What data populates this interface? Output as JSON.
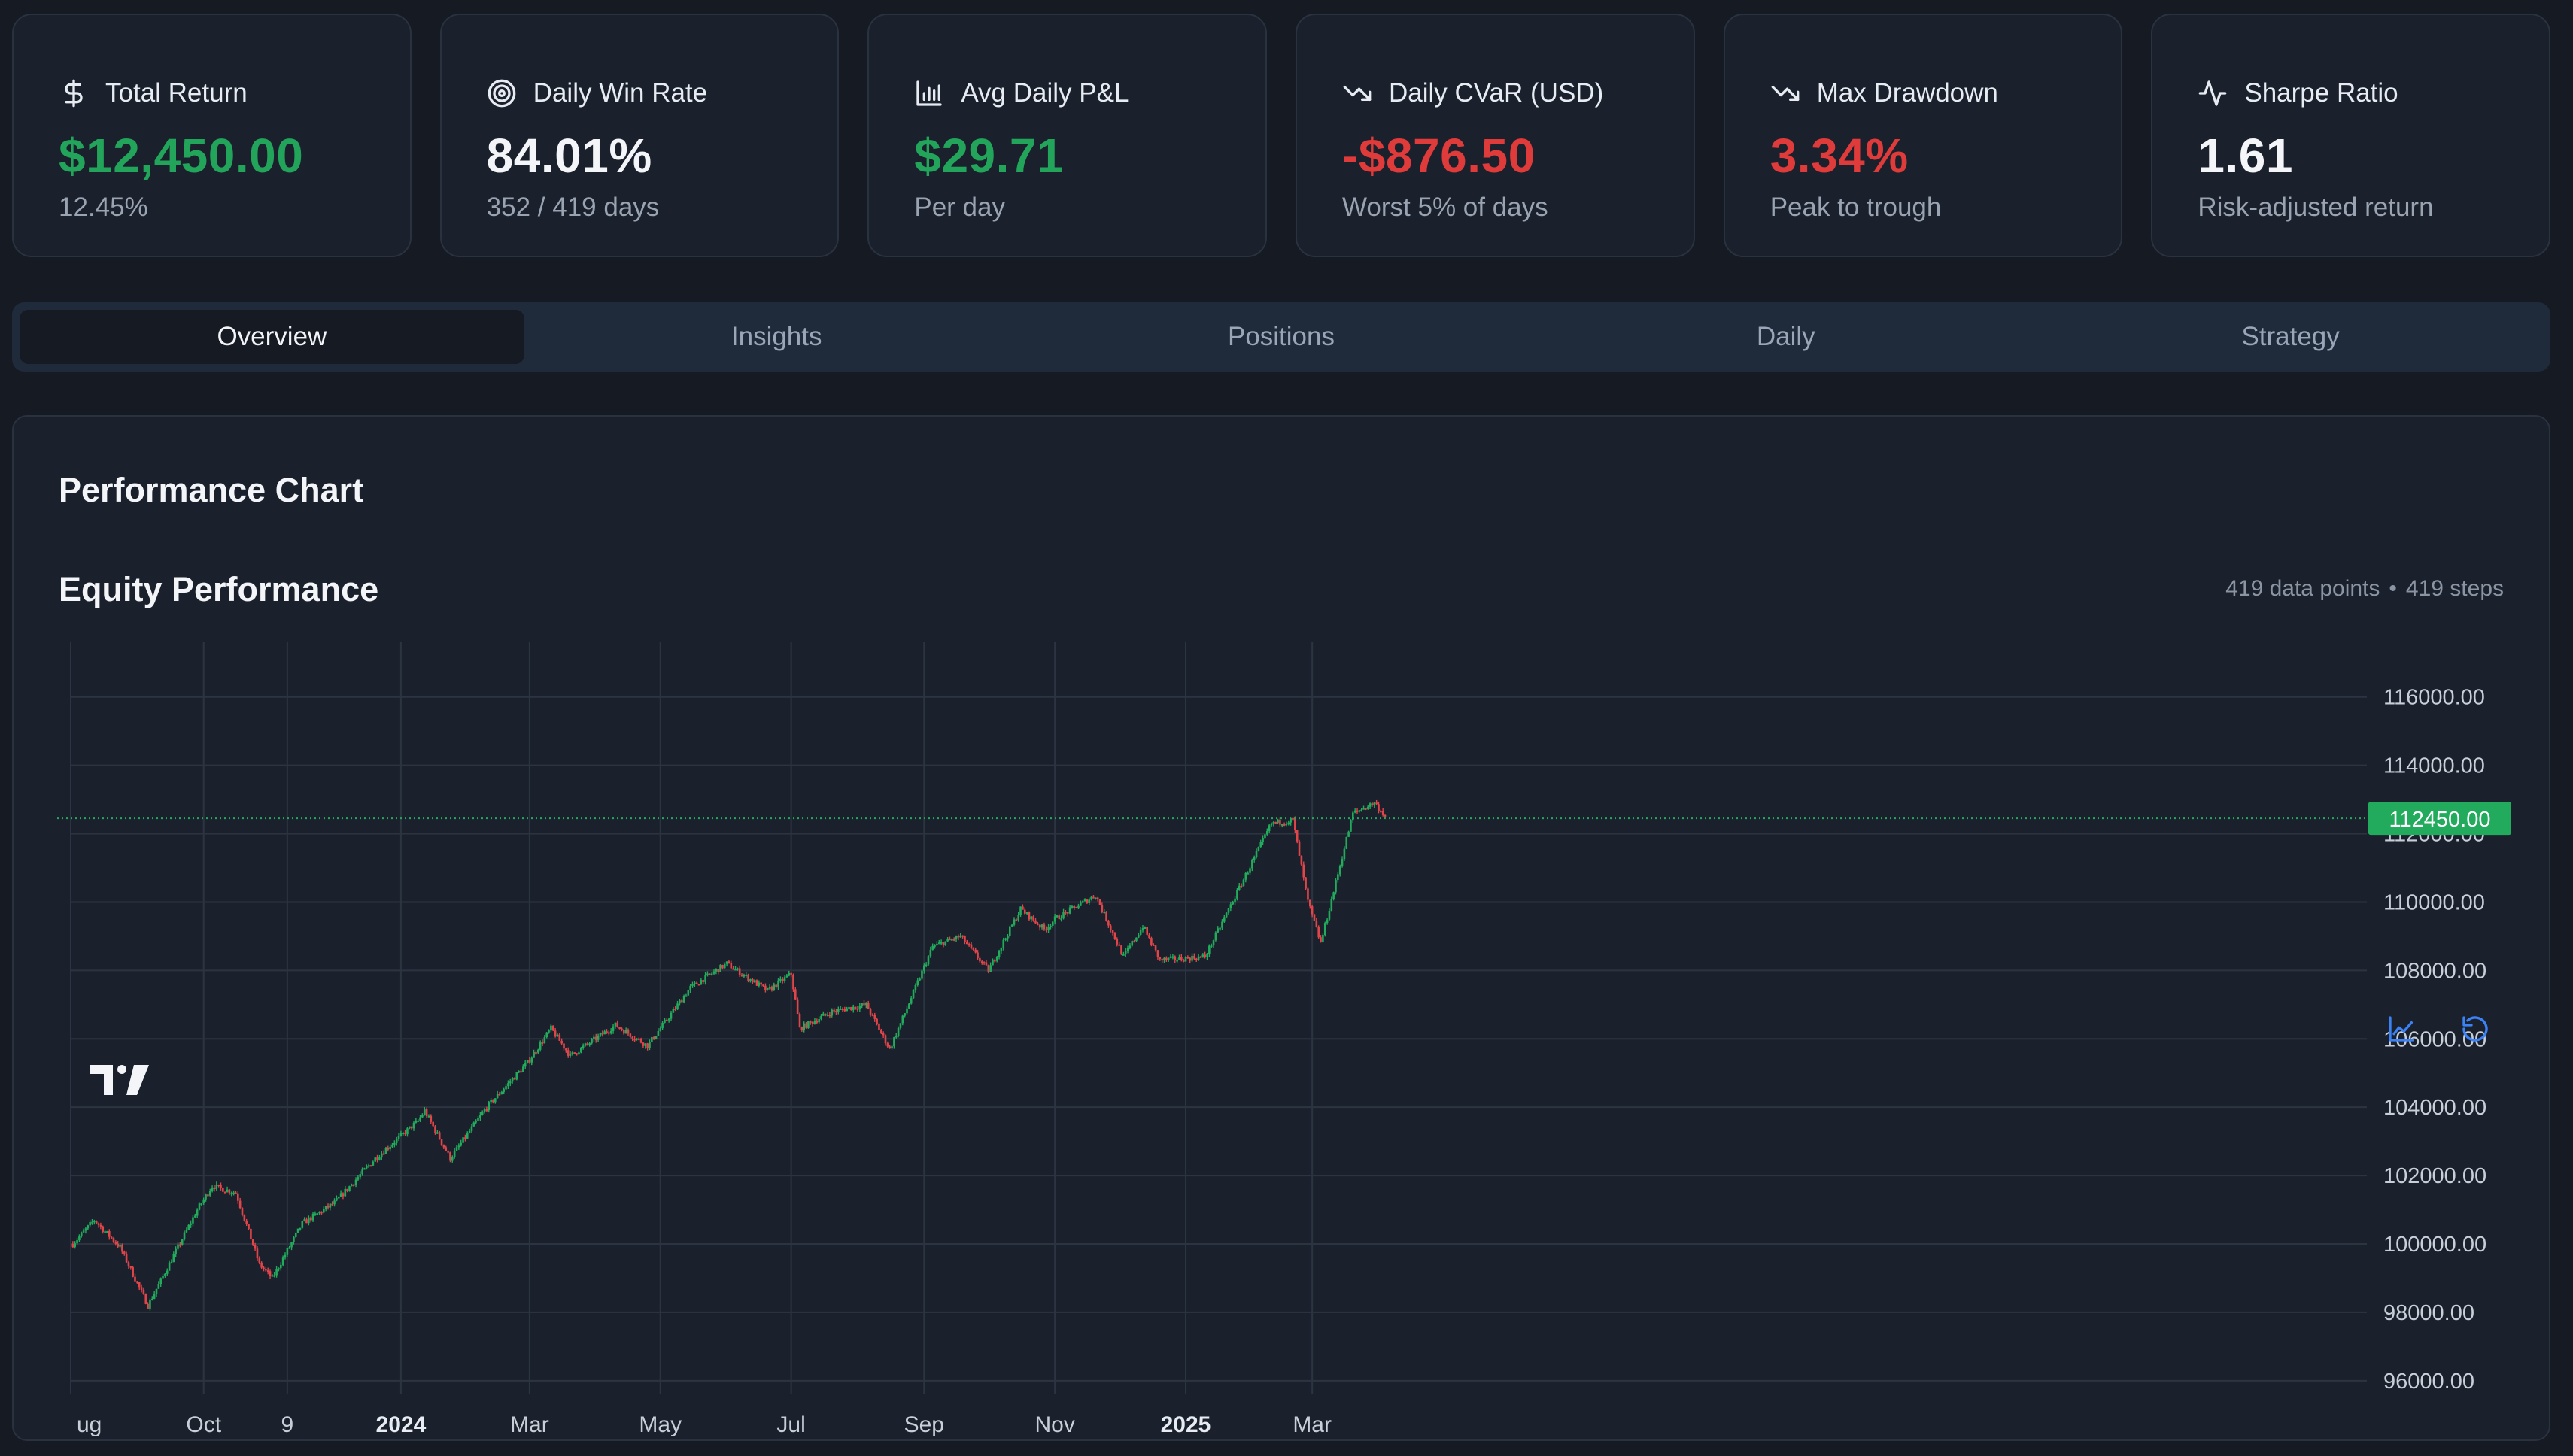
{
  "cards": [
    {
      "icon": "dollar-icon",
      "title": "Total Return",
      "value": "$12,450.00",
      "sub": "12.45%",
      "tone": "green"
    },
    {
      "icon": "target-icon",
      "title": "Daily Win Rate",
      "value": "84.01%",
      "sub": "352 / 419 days",
      "tone": "white"
    },
    {
      "icon": "bar-chart-icon",
      "title": "Avg Daily P&L",
      "value": "$29.71",
      "sub": "Per day",
      "tone": "green"
    },
    {
      "icon": "trend-down-icon",
      "title": "Daily CVaR (USD)",
      "value": "-$876.50",
      "sub": "Worst 5% of days",
      "tone": "red"
    },
    {
      "icon": "trend-down-icon",
      "title": "Max Drawdown",
      "value": "3.34%",
      "sub": "Peak to trough",
      "tone": "red"
    },
    {
      "icon": "activity-icon",
      "title": "Sharpe Ratio",
      "value": "1.61",
      "sub": "Risk-adjusted return",
      "tone": "white"
    }
  ],
  "tabs": [
    "Overview",
    "Insights",
    "Positions",
    "Daily",
    "Strategy"
  ],
  "active_tab": "Overview",
  "panel": {
    "title": "Performance Chart",
    "chart_title": "Equity Performance",
    "points_label": "419 data points",
    "separator": "•",
    "steps_label": "419 steps"
  },
  "colors": {
    "up": "#22ab5c",
    "down": "#e0454a",
    "grid": "#2d3441",
    "background": "#1b212c"
  },
  "chart_data": {
    "type": "candlestick",
    "title": "Equity Performance",
    "xlabel": "",
    "ylabel": "",
    "ylim": [
      95600,
      117600
    ],
    "y_ticks": [
      "116000.00",
      "114000.00",
      "112000.00",
      "110000.00",
      "108000.00",
      "106000.00",
      "104000.00",
      "102000.00",
      "100000.00",
      "98000.00",
      "96000.00"
    ],
    "x_ticks": [
      "ug",
      "Oct",
      "9",
      "2024",
      "Mar",
      "May",
      "Jul",
      "Sep",
      "Nov",
      "2025",
      "Mar"
    ],
    "bold_x_ticks": [
      "2024",
      "2025"
    ],
    "last_value": 112450.0,
    "last_value_label": "112450.00",
    "equity_path": [
      {
        "date": "2023-08-01",
        "value": 100000
      },
      {
        "date": "2023-08-11",
        "value": 100700
      },
      {
        "date": "2023-08-23",
        "value": 99900
      },
      {
        "date": "2023-09-05",
        "value": 98200
      },
      {
        "date": "2023-09-28",
        "value": 101000
      },
      {
        "date": "2023-10-05",
        "value": 101700
      },
      {
        "date": "2023-10-16",
        "value": 101500
      },
      {
        "date": "2023-10-27",
        "value": 99400
      },
      {
        "date": "2023-11-02",
        "value": 99000
      },
      {
        "date": "2023-11-16",
        "value": 100600
      },
      {
        "date": "2023-12-01",
        "value": 101200
      },
      {
        "date": "2023-12-20",
        "value": 102500
      },
      {
        "date": "2024-01-09",
        "value": 103600
      },
      {
        "date": "2024-01-12",
        "value": 103900
      },
      {
        "date": "2024-01-24",
        "value": 102500
      },
      {
        "date": "2024-02-10",
        "value": 104000
      },
      {
        "date": "2024-02-29",
        "value": 105300
      },
      {
        "date": "2024-03-11",
        "value": 106300
      },
      {
        "date": "2024-03-20",
        "value": 105500
      },
      {
        "date": "2024-04-10",
        "value": 106400
      },
      {
        "date": "2024-04-25",
        "value": 105800
      },
      {
        "date": "2024-05-15",
        "value": 107500
      },
      {
        "date": "2024-06-01",
        "value": 108200
      },
      {
        "date": "2024-06-20",
        "value": 107400
      },
      {
        "date": "2024-07-01",
        "value": 107900
      },
      {
        "date": "2024-07-05",
        "value": 106300
      },
      {
        "date": "2024-07-20",
        "value": 106800
      },
      {
        "date": "2024-08-05",
        "value": 107000
      },
      {
        "date": "2024-08-16",
        "value": 105700
      },
      {
        "date": "2024-09-05",
        "value": 108700
      },
      {
        "date": "2024-09-18",
        "value": 109000
      },
      {
        "date": "2024-10-01",
        "value": 108000
      },
      {
        "date": "2024-10-16",
        "value": 109800
      },
      {
        "date": "2024-10-27",
        "value": 109200
      },
      {
        "date": "2024-11-01",
        "value": 109500
      },
      {
        "date": "2024-11-20",
        "value": 110200
      },
      {
        "date": "2024-12-03",
        "value": 108400
      },
      {
        "date": "2024-12-12",
        "value": 109300
      },
      {
        "date": "2024-12-20",
        "value": 108300
      },
      {
        "date": "2025-01-10",
        "value": 108400
      },
      {
        "date": "2025-02-10",
        "value": 112300
      },
      {
        "date": "2025-02-20",
        "value": 112400
      },
      {
        "date": "2025-02-27",
        "value": 110000
      },
      {
        "date": "2025-03-05",
        "value": 108800
      },
      {
        "date": "2025-03-20",
        "value": 112600
      },
      {
        "date": "2025-03-30",
        "value": 112900
      },
      {
        "date": "2025-04-05",
        "value": 112450
      }
    ]
  }
}
